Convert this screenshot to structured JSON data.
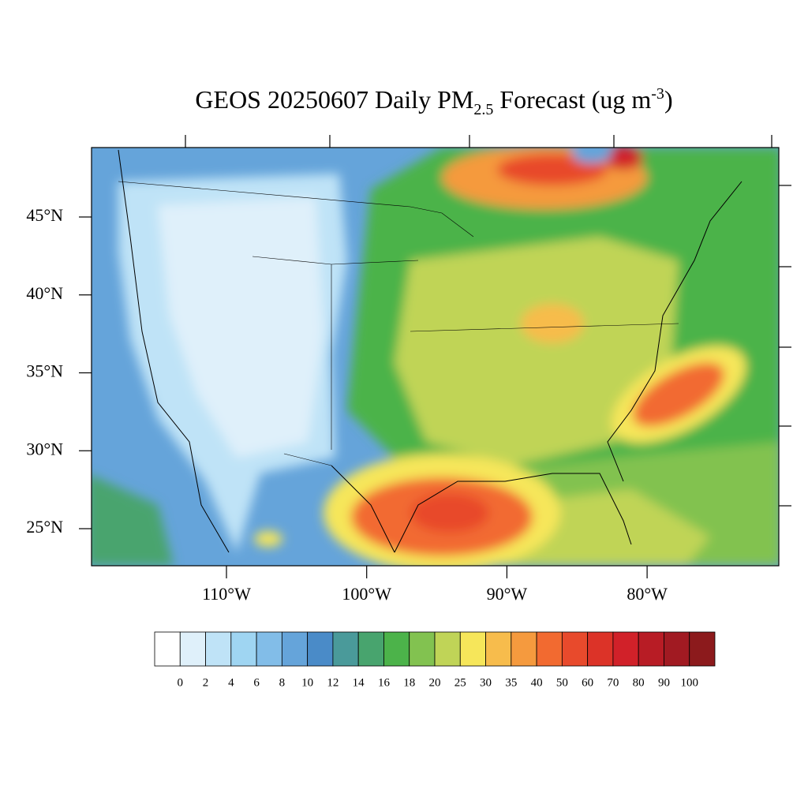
{
  "map": {
    "title": {
      "main": "GEOS 20250607 Daily PM",
      "sub": "2.5",
      "middle": " Forecast (ug m",
      "sup": "-3",
      "end": ")"
    },
    "lat_ticks": [
      {
        "value": 45,
        "label": "45°N"
      },
      {
        "value": 40,
        "label": "40°N"
      },
      {
        "value": 35,
        "label": "35°N"
      },
      {
        "value": 30,
        "label": "30°N"
      },
      {
        "value": 25,
        "label": "25°N"
      }
    ],
    "lon_ticks": [
      {
        "value": -110,
        "label": "110°W"
      },
      {
        "value": -100,
        "label": "100°W"
      },
      {
        "value": -90,
        "label": "90°W"
      },
      {
        "value": -80,
        "label": "80°W"
      }
    ],
    "colorbar": {
      "levels": [
        0,
        2,
        4,
        6,
        8,
        10,
        12,
        14,
        16,
        18,
        20,
        25,
        30,
        35,
        40,
        50,
        60,
        70,
        80,
        90,
        100
      ],
      "colors": [
        "#ffffff",
        "#dff0fa",
        "#bfe3f7",
        "#9fd5f2",
        "#82bde8",
        "#65a4da",
        "#4a8bc8",
        "#4a9a9a",
        "#48a46e",
        "#4cb34a",
        "#82c250",
        "#c0d457",
        "#f6e65a",
        "#f7bc4c",
        "#f59a3e",
        "#f26a30",
        "#e84a2c",
        "#dc3328",
        "#d12129",
        "#b81c25",
        "#a11a22",
        "#8c1a1c"
      ]
    }
  }
}
